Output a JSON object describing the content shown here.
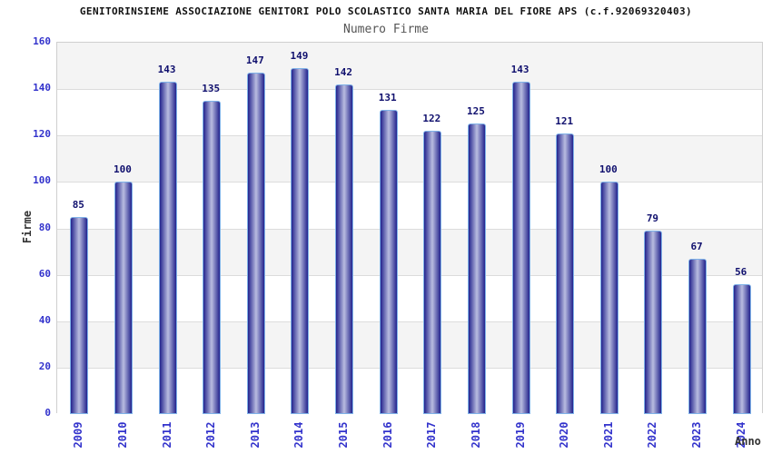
{
  "title": "GENITORINSIEME ASSOCIAZIONE GENITORI POLO SCOLASTICO SANTA MARIA DEL FIORE APS (c.f.92069320403)",
  "subtitle": "Numero Firme",
  "chart_data": {
    "type": "bar",
    "title": "Numero Firme",
    "categories": [
      "2009",
      "2010",
      "2011",
      "2012",
      "2013",
      "2014",
      "2015",
      "2016",
      "2017",
      "2018",
      "2019",
      "2020",
      "2021",
      "2022",
      "2023",
      "2024"
    ],
    "values": [
      85,
      100,
      143,
      135,
      147,
      149,
      142,
      131,
      122,
      125,
      143,
      121,
      100,
      79,
      67,
      56
    ],
    "xlabel": "Anno",
    "ylabel": "Firme",
    "ylim": [
      0,
      160
    ],
    "ytick_step": 20,
    "yticks": [
      0,
      20,
      40,
      60,
      80,
      100,
      120,
      140,
      160
    ],
    "grid": true,
    "legend": "none",
    "background_bands": "alternating horizontal gray/white, 20-unit height, gray at top band"
  },
  "colors": {
    "tick_label_blue": "#3333cc",
    "value_label_navy": "#10106e",
    "bar_edge_dark": "#23238d",
    "bar_center_light": "#b9bde0",
    "bar_border_lightblue": "#7fb2e8",
    "band_gray": "#f4f4f4",
    "grid_line": "#dcdcdc",
    "plot_border": "#cfcfcf",
    "title_color": "#111111",
    "subtitle_color": "#555555",
    "axis_title_color": "#333333"
  }
}
